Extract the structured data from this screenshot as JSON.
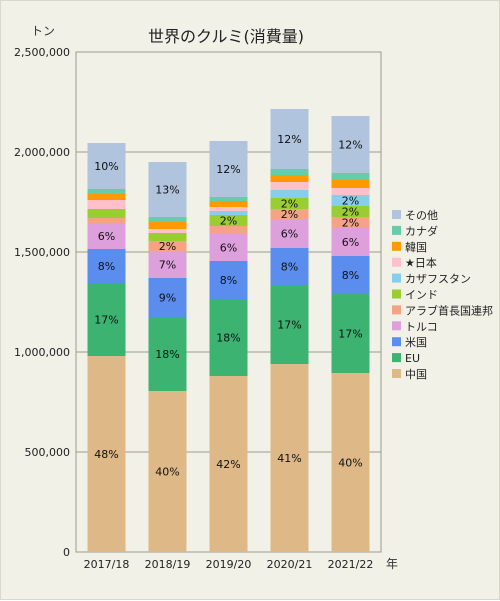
{
  "chart_data": {
    "type": "bar",
    "stacked": true,
    "title": "世界のクルミ(消費量)",
    "ylabel": "トン",
    "xlabel": "年",
    "ylim": [
      0,
      2500000
    ],
    "yticks": [
      0,
      500000,
      1000000,
      1500000,
      2000000,
      2500000
    ],
    "ytick_labels": [
      "0",
      "500,000",
      "1,000,000",
      "1,500,000",
      "2,000,000",
      "2,500,000"
    ],
    "grid": true,
    "legend_position": "right",
    "categories": [
      "2017/18",
      "2018/19",
      "2019/20",
      "2020/21",
      "2021/22"
    ],
    "series": [
      {
        "name": "中国",
        "color": "#deb887",
        "values": [
          980000,
          805000,
          880000,
          940000,
          895000
        ],
        "labels": [
          "48%",
          "40%",
          "42%",
          "41%",
          "40%"
        ]
      },
      {
        "name": "EU",
        "color": "#3cb371",
        "values": [
          365000,
          370000,
          385000,
          395000,
          395000
        ],
        "labels": [
          "17%",
          "18%",
          "18%",
          "17%",
          "17%"
        ]
      },
      {
        "name": "米国",
        "color": "#5b8def",
        "values": [
          170000,
          195000,
          190000,
          185000,
          190000
        ],
        "labels": [
          "8%",
          "9%",
          "8%",
          "8%",
          "8%"
        ]
      },
      {
        "name": "トルコ",
        "color": "#dda0dd",
        "values": [
          130000,
          135000,
          135000,
          145000,
          140000
        ],
        "labels": [
          "6%",
          "7%",
          "6%",
          "6%",
          "6%"
        ]
      },
      {
        "name": "アラブ首長国連邦",
        "color": "#f4a384",
        "values": [
          25000,
          50000,
          40000,
          50000,
          55000
        ],
        "labels": [
          "",
          "2%",
          "",
          "2%",
          "2%"
        ]
      },
      {
        "name": "インド",
        "color": "#9acd32",
        "values": [
          45000,
          40000,
          55000,
          55000,
          55000
        ],
        "labels": [
          "",
          "",
          "2%",
          "2%",
          "2%"
        ]
      },
      {
        "name": "カザフスタン",
        "color": "#87ceeb",
        "values": [
          0,
          0,
          20000,
          40000,
          55000
        ],
        "labels": [
          "",
          "",
          "",
          "",
          "2%"
        ]
      },
      {
        "name": "★日本",
        "color": "#ffc0cb",
        "values": [
          45000,
          20000,
          20000,
          40000,
          35000
        ],
        "labels": [
          "",
          "",
          "",
          "",
          ""
        ]
      },
      {
        "name": "韓国",
        "color": "#ff9900",
        "values": [
          30000,
          35000,
          30000,
          35000,
          40000
        ],
        "labels": [
          "",
          "",
          "",
          "",
          ""
        ]
      },
      {
        "name": "カナダ",
        "color": "#66cdaa",
        "values": [
          25000,
          25000,
          20000,
          30000,
          35000
        ],
        "labels": [
          "",
          "",
          "",
          "",
          ""
        ]
      },
      {
        "name": "その他",
        "color": "#b0c4de",
        "values": [
          230000,
          275000,
          280000,
          300000,
          285000
        ],
        "labels": [
          "10%",
          "13%",
          "12%",
          "12%",
          "12%"
        ]
      }
    ]
  }
}
